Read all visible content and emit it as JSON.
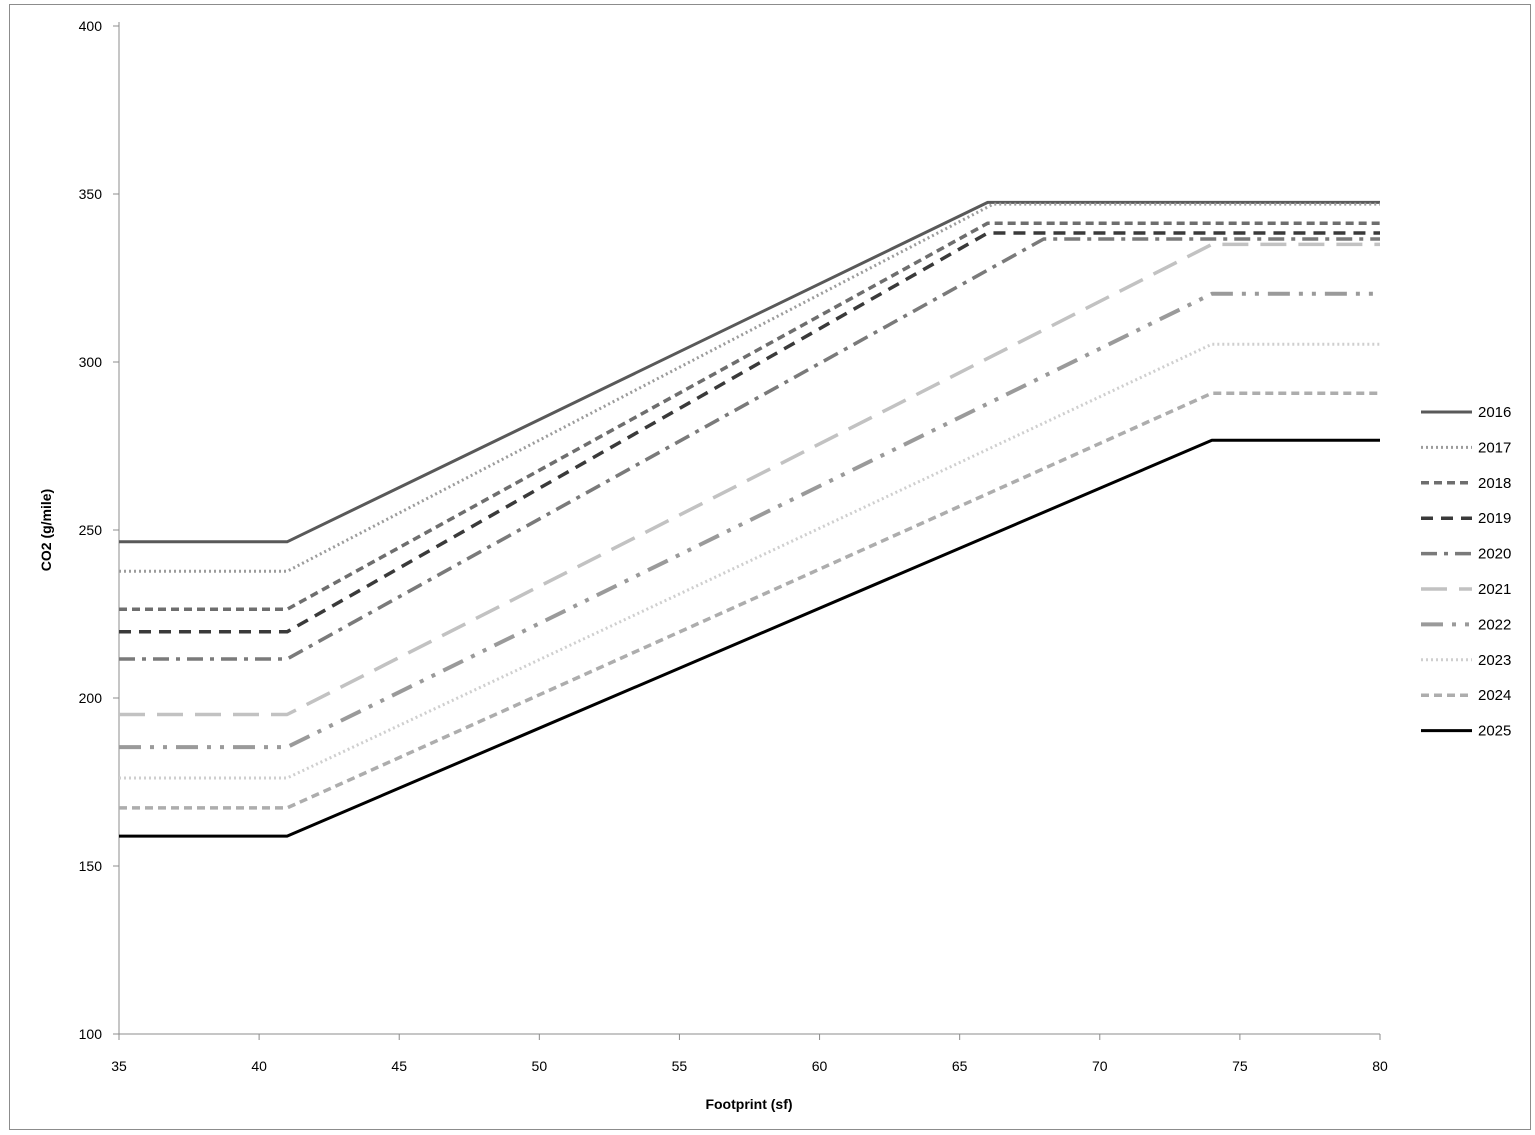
{
  "chart_data": {
    "type": "line",
    "title": "",
    "xlabel": "Footprint (sf)",
    "ylabel": "CO2 (g/mile)",
    "xlim": [
      35,
      80
    ],
    "ylim": [
      100,
      400
    ],
    "xticks": [
      35,
      40,
      45,
      50,
      55,
      60,
      65,
      70,
      75,
      80
    ],
    "yticks": [
      100,
      150,
      200,
      250,
      300,
      350,
      400
    ],
    "grid": false,
    "legend_position": "right",
    "series": [
      {
        "name": "2016",
        "color": "#595959",
        "dash": "solid",
        "width": 3,
        "points": [
          [
            35,
            246.5
          ],
          [
            41,
            246.5
          ],
          [
            66,
            347.5
          ],
          [
            80,
            347.5
          ]
        ]
      },
      {
        "name": "2017",
        "color": "#9c9c9c",
        "dash": "dotted",
        "width": 3,
        "points": [
          [
            35,
            237.7
          ],
          [
            41,
            237.7
          ],
          [
            66.2,
            347.0
          ],
          [
            80,
            347.0
          ]
        ]
      },
      {
        "name": "2018",
        "color": "#6e6e6e",
        "dash": "short",
        "width": 3.5,
        "points": [
          [
            35,
            226.4
          ],
          [
            41,
            226.4
          ],
          [
            66,
            341.3
          ],
          [
            80,
            341.3
          ]
        ]
      },
      {
        "name": "2019",
        "color": "#3a3a3a",
        "dash": "medium",
        "width": 3.5,
        "points": [
          [
            35,
            219.7
          ],
          [
            41,
            219.7
          ],
          [
            66,
            338.4
          ],
          [
            80,
            338.4
          ]
        ]
      },
      {
        "name": "2020",
        "color": "#7a7a7a",
        "dash": "dashdot",
        "width": 3.5,
        "points": [
          [
            35,
            211.6
          ],
          [
            41,
            211.6
          ],
          [
            68,
            336.6
          ],
          [
            80,
            336.6
          ]
        ]
      },
      {
        "name": "2021",
        "color": "#c2c2c2",
        "dash": "long",
        "width": 3.5,
        "points": [
          [
            35,
            195.1
          ],
          [
            41,
            195.1
          ],
          [
            74,
            335.0
          ],
          [
            80,
            335.0
          ]
        ]
      },
      {
        "name": "2022",
        "color": "#9a9a9a",
        "dash": "longdashdotdot",
        "width": 4,
        "points": [
          [
            35,
            185.4
          ],
          [
            41,
            185.4
          ],
          [
            74,
            320.3
          ],
          [
            80,
            320.3
          ]
        ]
      },
      {
        "name": "2023",
        "color": "#cfcfcf",
        "dash": "dotted",
        "width": 3,
        "points": [
          [
            35,
            176.2
          ],
          [
            41,
            176.2
          ],
          [
            74,
            305.3
          ],
          [
            80,
            305.3
          ]
        ]
      },
      {
        "name": "2024",
        "color": "#adadad",
        "dash": "short",
        "width": 3.5,
        "points": [
          [
            35,
            167.3
          ],
          [
            41,
            167.3
          ],
          [
            74,
            290.7
          ],
          [
            80,
            290.7
          ]
        ]
      },
      {
        "name": "2025",
        "color": "#000000",
        "dash": "solid",
        "width": 3,
        "points": [
          [
            35,
            158.9
          ],
          [
            41,
            158.9
          ],
          [
            74,
            276.7
          ],
          [
            80,
            276.7
          ]
        ]
      }
    ]
  }
}
